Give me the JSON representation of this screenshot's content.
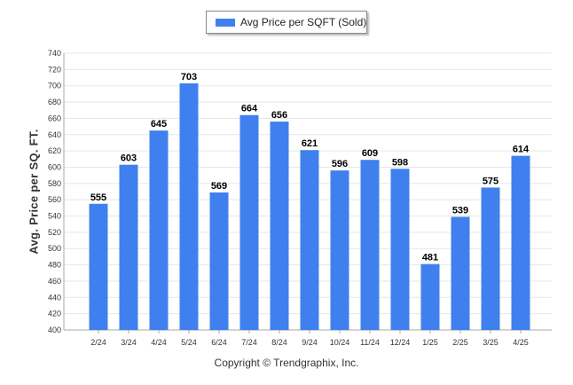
{
  "chart_data": {
    "type": "bar",
    "categories": [
      "2/24",
      "3/24",
      "4/24",
      "5/24",
      "6/24",
      "7/24",
      "8/24",
      "9/24",
      "10/24",
      "11/24",
      "12/24",
      "1/25",
      "2/25",
      "3/25",
      "4/25"
    ],
    "series": [
      {
        "name": "Avg Price per SQFT (Sold)",
        "values": [
          555,
          603,
          645,
          703,
          569,
          664,
          656,
          621,
          596,
          609,
          598,
          481,
          539,
          575,
          614
        ]
      }
    ],
    "xlabel": "",
    "ylabel": "Avg. Price per SQ. FT.",
    "ylim": [
      400,
      740
    ],
    "yticks": [
      400,
      420,
      440,
      460,
      480,
      500,
      520,
      540,
      560,
      580,
      600,
      620,
      640,
      660,
      680,
      700,
      720,
      740
    ],
    "grid": true,
    "legend_position": "top-center",
    "bar_color": "#4080ee"
  },
  "footer": {
    "copyright": "Copyright © Trendgraphix, Inc."
  }
}
